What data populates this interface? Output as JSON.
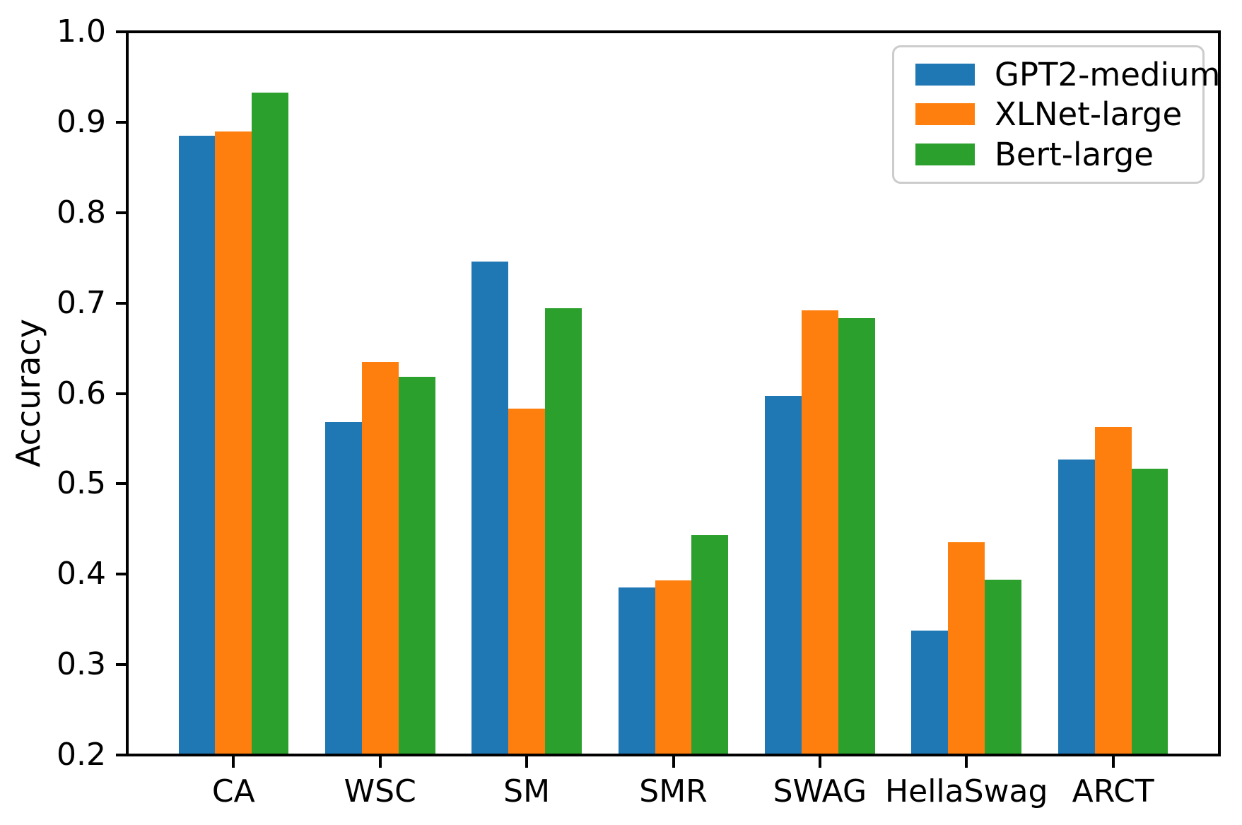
{
  "chart_data": {
    "type": "bar",
    "ylabel": "Accuracy",
    "xlabel": "",
    "ylim": [
      0.2,
      1.0
    ],
    "grid": false,
    "background_color": "#ffffff",
    "axis_color": "#000000",
    "legend_position": "upper right",
    "categories": [
      "CA",
      "WSC",
      "SM",
      "SMR",
      "SWAG",
      "HellaSwag",
      "ARCT"
    ],
    "series": [
      {
        "name": "GPT2-medium",
        "color": "#1f77b4",
        "values": [
          0.885,
          0.568,
          0.746,
          0.385,
          0.597,
          0.338,
          0.527
        ]
      },
      {
        "name": "XLNet-large",
        "color": "#ff7f0e",
        "values": [
          0.89,
          0.635,
          0.583,
          0.393,
          0.692,
          0.435,
          0.563
        ]
      },
      {
        "name": "Bert-large",
        "color": "#2ca02c",
        "values": [
          0.933,
          0.618,
          0.694,
          0.443,
          0.683,
          0.394,
          0.517
        ]
      }
    ],
    "yticks": [
      {
        "value": 0.2,
        "label": "0.2"
      },
      {
        "value": 0.3,
        "label": "0.3"
      },
      {
        "value": 0.4,
        "label": "0.4"
      },
      {
        "value": 0.5,
        "label": "0.5"
      },
      {
        "value": 0.6,
        "label": "0.6"
      },
      {
        "value": 0.7,
        "label": "0.7"
      },
      {
        "value": 0.8,
        "label": "0.8"
      },
      {
        "value": 0.9,
        "label": "0.9"
      },
      {
        "value": 1.0,
        "label": "1.0"
      }
    ]
  }
}
